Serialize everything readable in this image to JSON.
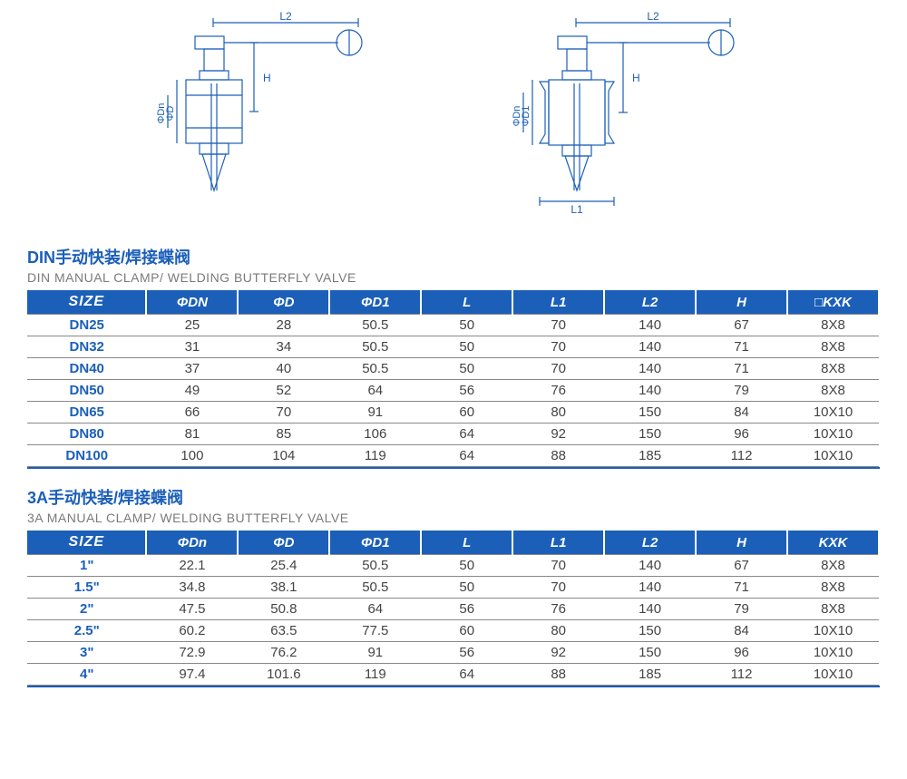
{
  "colors": {
    "brand": "#1b5fb8",
    "rule": "#888888",
    "text": "#444444",
    "subtitle": "#7a7a7a",
    "white": "#ffffff"
  },
  "diagrams": {
    "stroke": "#1b5fb8",
    "stroke_width": 1.2,
    "labels": {
      "L2": "L2",
      "H": "H",
      "phiD": "ΦD",
      "phiDn": "ΦDn",
      "phiD1": "ΦD1",
      "L1": "L1"
    }
  },
  "section1": {
    "title_cn": "DIN手动快装/焊接蝶阀",
    "title_en": "DIN MANUAL CLAMP/ WELDING BUTTERFLY VALVE",
    "headers": [
      "SIZE",
      "ΦDN",
      "ΦD",
      "ΦD1",
      "L",
      "L1",
      "L2",
      "H",
      "□KXK"
    ],
    "rows": [
      [
        "DN25",
        "25",
        "28",
        "50.5",
        "50",
        "70",
        "140",
        "67",
        "8X8"
      ],
      [
        "DN32",
        "31",
        "34",
        "50.5",
        "50",
        "70",
        "140",
        "71",
        "8X8"
      ],
      [
        "DN40",
        "37",
        "40",
        "50.5",
        "50",
        "70",
        "140",
        "71",
        "8X8"
      ],
      [
        "DN50",
        "49",
        "52",
        "64",
        "56",
        "76",
        "140",
        "79",
        "8X8"
      ],
      [
        "DN65",
        "66",
        "70",
        "91",
        "60",
        "80",
        "150",
        "84",
        "10X10"
      ],
      [
        "DN80",
        "81",
        "85",
        "106",
        "64",
        "92",
        "150",
        "96",
        "10X10"
      ],
      [
        "DN100",
        "100",
        "104",
        "119",
        "64",
        "88",
        "185",
        "112",
        "10X10"
      ]
    ]
  },
  "section2": {
    "title_cn": "3A手动快装/焊接蝶阀",
    "title_en": "3A MANUAL CLAMP/ WELDING BUTTERFLY VALVE",
    "headers": [
      "SIZE",
      "ΦDn",
      "ΦD",
      "ΦD1",
      "L",
      "L1",
      "L2",
      "H",
      "KXK"
    ],
    "rows": [
      [
        "1\"",
        "22.1",
        "25.4",
        "50.5",
        "50",
        "70",
        "140",
        "67",
        "8X8"
      ],
      [
        "1.5\"",
        "34.8",
        "38.1",
        "50.5",
        "50",
        "70",
        "140",
        "71",
        "8X8"
      ],
      [
        "2\"",
        "47.5",
        "50.8",
        "64",
        "56",
        "76",
        "140",
        "79",
        "8X8"
      ],
      [
        "2.5\"",
        "60.2",
        "63.5",
        "77.5",
        "60",
        "80",
        "150",
        "84",
        "10X10"
      ],
      [
        "3\"",
        "72.9",
        "76.2",
        "91",
        "56",
        "92",
        "150",
        "96",
        "10X10"
      ],
      [
        "4\"",
        "97.4",
        "101.6",
        "119",
        "64",
        "88",
        "185",
        "112",
        "10X10"
      ]
    ]
  }
}
